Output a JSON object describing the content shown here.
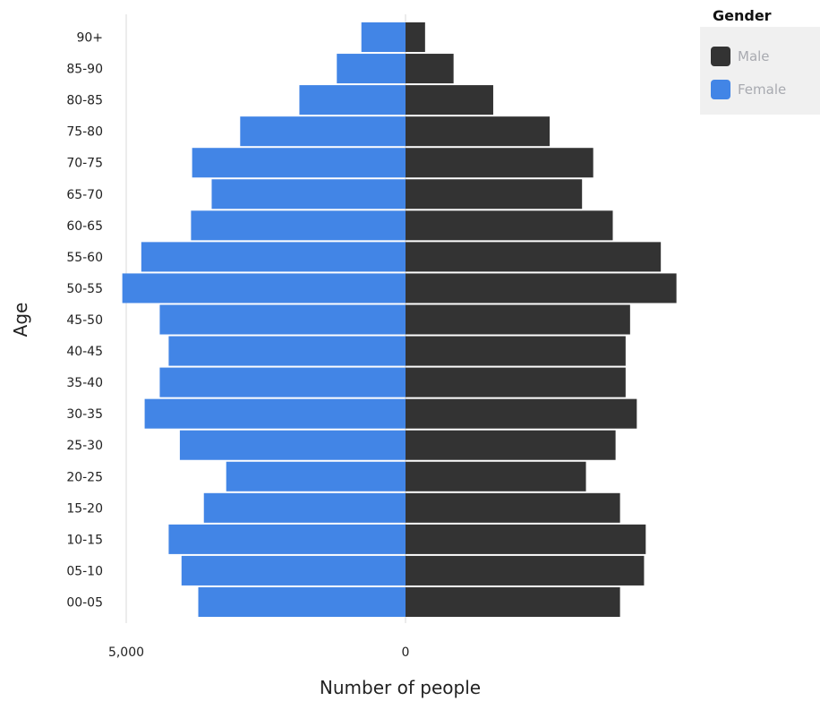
{
  "chart_data": {
    "type": "bar",
    "orientation": "horizontal",
    "xlabel": "Number of people",
    "ylabel": "Age",
    "xticks": [
      {
        "value": 5000,
        "label": "5,000"
      },
      {
        "value": 0,
        "label": "0"
      }
    ],
    "categories": [
      "00-05",
      "05-10",
      "10-15",
      "15-20",
      "20-25",
      "25-30",
      "30-35",
      "35-40",
      "40-45",
      "45-50",
      "50-55",
      "55-60",
      "60-65",
      "65-70",
      "70-75",
      "75-80",
      "80-85",
      "85-90",
      "90+"
    ],
    "series": [
      {
        "name": "Male",
        "color": "#333333",
        "values": [
          3840,
          4270,
          4300,
          3840,
          3230,
          3760,
          4140,
          3940,
          3940,
          4020,
          4850,
          4570,
          3710,
          3160,
          3360,
          2580,
          1570,
          860,
          350
        ]
      },
      {
        "name": "Female",
        "color": "#4285e6",
        "values": [
          3710,
          4010,
          4240,
          3610,
          3210,
          4040,
          4670,
          4400,
          4240,
          4400,
          5070,
          4730,
          3840,
          3470,
          3820,
          2960,
          1900,
          1230,
          790
        ]
      }
    ],
    "legend": {
      "title": "Gender",
      "position": "top-right"
    },
    "grid": false
  }
}
